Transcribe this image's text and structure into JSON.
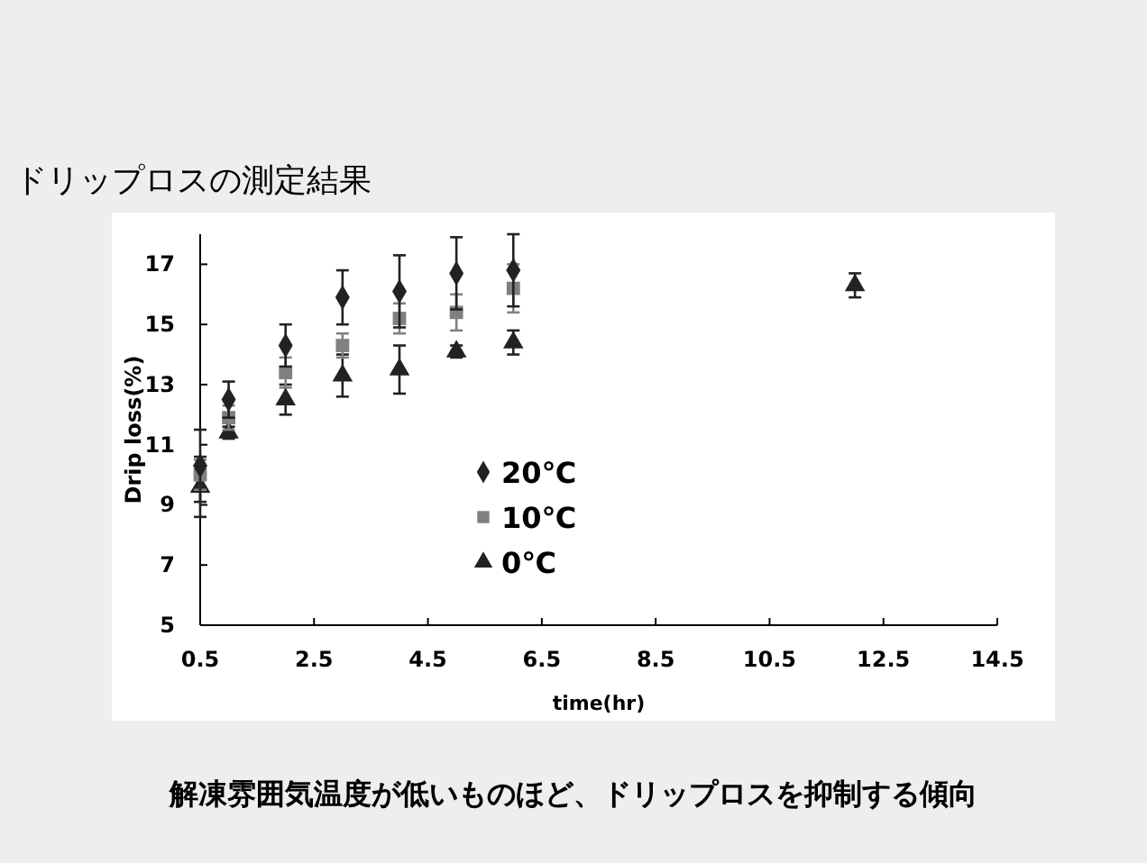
{
  "chart_data": {
    "type": "scatter",
    "title": "ドリップロスの測定結果",
    "xlabel": "time(hr)",
    "ylabel": "Drip loss(%)",
    "xlim": [
      0.5,
      14.5
    ],
    "xticks": [
      0.5,
      2.5,
      4.5,
      6.5,
      8.5,
      10.5,
      12.5,
      14.5
    ],
    "ylim": [
      5,
      18
    ],
    "yticks": [
      5,
      7,
      9,
      11,
      13,
      15,
      17
    ],
    "legend": "center",
    "grid": false,
    "series": [
      {
        "name": "20℃",
        "color": "#222222",
        "marker": "diamond",
        "x": [
          0.5,
          1,
          2,
          3,
          4,
          5,
          6
        ],
        "values": [
          10.3,
          12.5,
          14.3,
          15.9,
          16.1,
          16.7,
          16.8
        ],
        "errors": [
          1.2,
          0.6,
          0.7,
          0.9,
          1.2,
          1.2,
          1.2
        ]
      },
      {
        "name": "10℃",
        "color": "#808080",
        "marker": "square",
        "x": [
          0.5,
          1,
          2,
          3,
          4,
          5,
          6
        ],
        "values": [
          10.0,
          11.9,
          13.4,
          14.3,
          15.2,
          15.4,
          16.2
        ],
        "errors": [
          0.5,
          0.4,
          0.5,
          0.4,
          0.5,
          0.6,
          0.8
        ]
      },
      {
        "name": "0℃",
        "color": "#222222",
        "marker": "triangle",
        "x": [
          0.5,
          1,
          2,
          3,
          4,
          5,
          6,
          12
        ],
        "values": [
          9.6,
          11.4,
          12.5,
          13.3,
          13.5,
          14.1,
          14.4,
          16.3
        ],
        "errors": [
          1.0,
          0.2,
          0.5,
          0.7,
          0.8,
          0.2,
          0.4,
          0.4
        ]
      }
    ],
    "annotations": [
      "解凍雰囲気温度が低いものほど、ドリップロスを抑制する傾向"
    ]
  }
}
